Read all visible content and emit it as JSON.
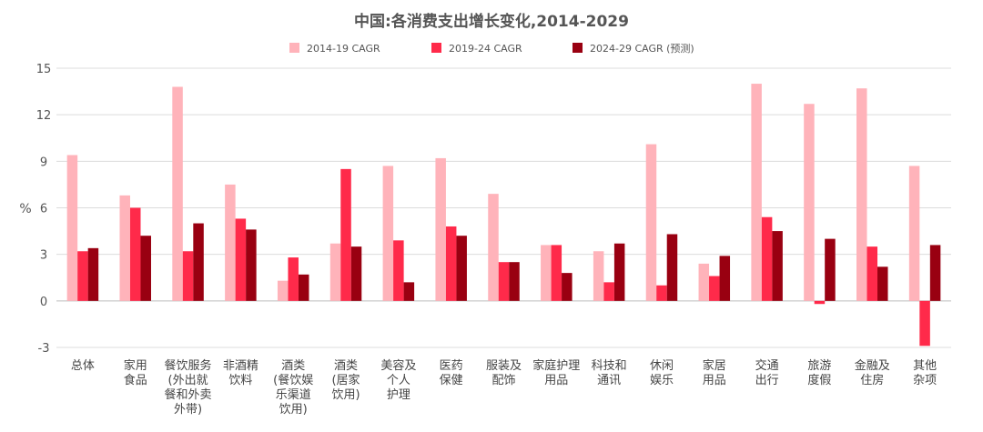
{
  "chart_data": {
    "type": "bar",
    "title": "中国:各消费支出增长变化,2014-2029",
    "ylabel": "%",
    "ylim": [
      -3,
      15
    ],
    "yticks": [
      -3,
      0,
      3,
      6,
      9,
      12,
      15
    ],
    "grid": true,
    "legend_position": "top",
    "categories": [
      [
        "总体"
      ],
      [
        "家用",
        "食品"
      ],
      [
        "餐饮服务",
        "(外出就",
        "餐和外卖",
        "外带)"
      ],
      [
        "非酒精",
        "饮料"
      ],
      [
        "酒类",
        "(餐饮娱",
        "乐渠道",
        "饮用)"
      ],
      [
        "酒类",
        "(居家",
        "饮用)"
      ],
      [
        "美容及",
        "个人",
        "护理"
      ],
      [
        "医药",
        "保健"
      ],
      [
        "服装及",
        "配饰"
      ],
      [
        "家庭护理",
        "用品"
      ],
      [
        "科技和",
        "通讯"
      ],
      [
        "休闲",
        "娱乐"
      ],
      [
        "家居",
        "用品"
      ],
      [
        "交通",
        "出行"
      ],
      [
        "旅游",
        "度假"
      ],
      [
        "金融及",
        "住房"
      ],
      [
        "其他",
        "杂项"
      ]
    ],
    "series": [
      {
        "name": "2014-19 CAGR",
        "color": "#ffb3ba",
        "values": [
          9.4,
          6.8,
          13.8,
          7.5,
          1.3,
          3.7,
          8.7,
          9.2,
          6.9,
          3.6,
          3.2,
          10.1,
          2.4,
          14.0,
          12.7,
          13.7,
          8.7
        ]
      },
      {
        "name": "2019-24 CAGR",
        "color": "#ff2a4a",
        "values": [
          3.2,
          6.0,
          3.2,
          5.3,
          2.8,
          8.5,
          3.9,
          4.8,
          2.5,
          3.6,
          1.2,
          1.0,
          1.6,
          5.4,
          -0.2,
          3.5,
          -2.9
        ]
      },
      {
        "name": "2024-29 CAGR (预测)",
        "color": "#990011",
        "values": [
          3.4,
          4.2,
          5.0,
          4.6,
          1.7,
          3.5,
          1.2,
          4.2,
          2.5,
          1.8,
          3.7,
          4.3,
          2.9,
          4.5,
          4.0,
          2.2,
          3.6
        ]
      }
    ]
  }
}
